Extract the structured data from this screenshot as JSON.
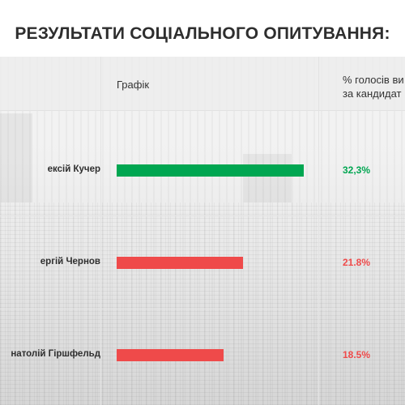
{
  "title": "РЕЗУЛЬТАТИ СОЦІАЛЬНОГО ОПИТУВАННЯ:",
  "table": {
    "header_chart": "Графік",
    "header_percent_line1": "% голосів ви",
    "header_percent_line2": "за кандидат"
  },
  "chart_data": {
    "type": "bar",
    "orientation": "horizontal",
    "categories": [
      "ексій Кучер",
      "ергій Чернов",
      "натолій Гіршфельд"
    ],
    "values": [
      32.3,
      21.8,
      18.5
    ],
    "value_labels": [
      "32,3%",
      "21.8%",
      "18.5%"
    ],
    "colors": [
      "#00a651",
      "#ef4a4a",
      "#ef4a4a"
    ],
    "title": "РЕЗУЛЬТАТИ СОЦІАЛЬНОГО ОПИТУВАННЯ:",
    "xlabel": "",
    "ylabel": "",
    "xlim": [
      0,
      32.3
    ]
  }
}
